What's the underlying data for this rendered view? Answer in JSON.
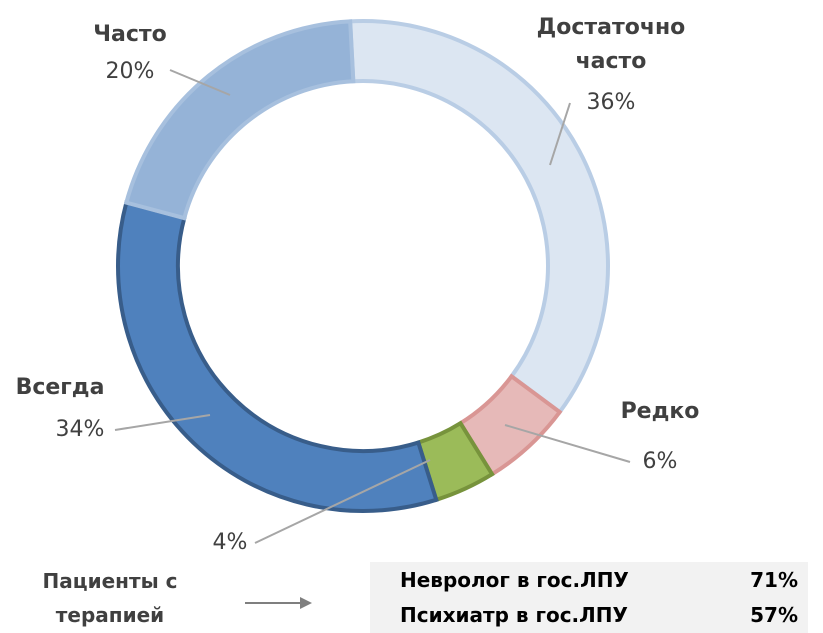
{
  "chart_data": {
    "type": "donut",
    "categories": [
      "Достаточно часто",
      "Редко",
      null,
      "Всегда",
      "Часто"
    ],
    "values": [
      36,
      6,
      4,
      34,
      20
    ],
    "value_labels": [
      "36%",
      "6%",
      "4%",
      "34%",
      "20%"
    ],
    "colors": [
      "#dce6f2",
      "#e6b9b8",
      "#9bbb59",
      "#4f81bd",
      "#95b3d7"
    ]
  },
  "note": {
    "label": "Пациенты с терапией"
  },
  "table": {
    "rows": [
      [
        "Невролог в гос.ЛПУ",
        "71%"
      ],
      [
        "Психиатр в гос.ЛПУ",
        "57%"
      ]
    ]
  }
}
